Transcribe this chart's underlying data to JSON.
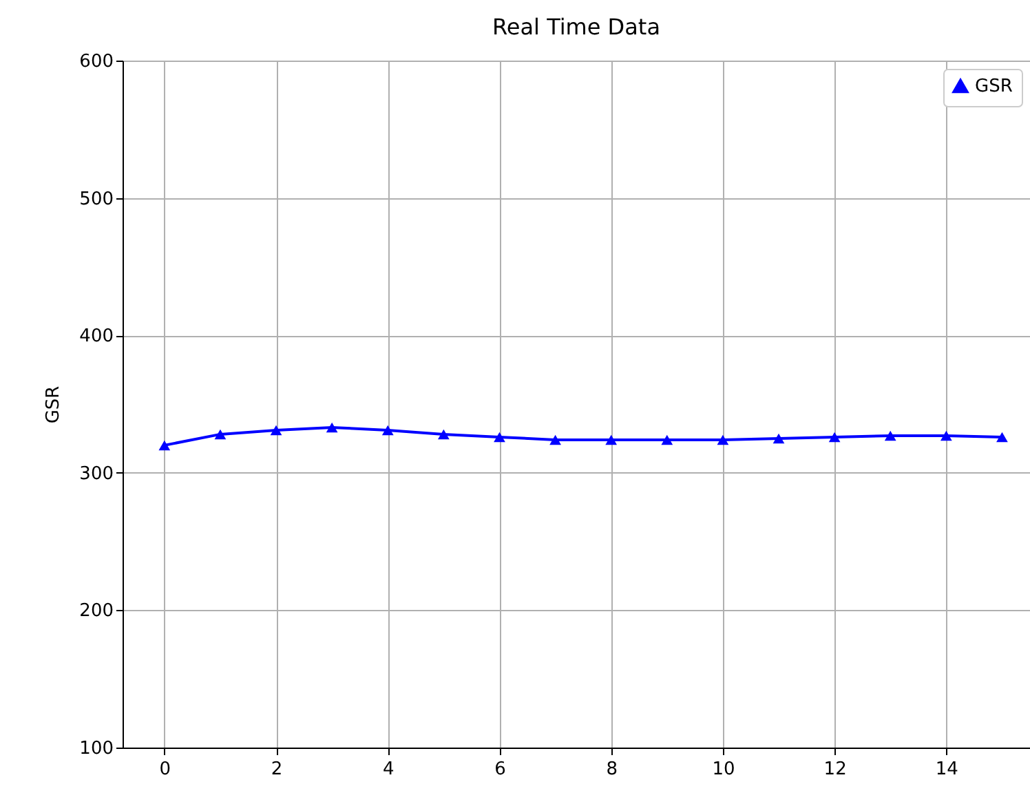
{
  "chart_data": {
    "type": "line",
    "title": "Real Time Data",
    "ylabel": "GSR",
    "x": [
      0,
      1,
      2,
      3,
      4,
      5,
      6,
      7,
      8,
      9,
      10,
      11,
      12,
      13,
      14,
      15
    ],
    "series": [
      {
        "name": "GSR",
        "color": "#0000ff",
        "values": [
          320,
          328,
          331,
          333,
          331,
          328,
          326,
          324,
          324,
          324,
          324,
          325,
          326,
          327,
          327,
          326
        ]
      }
    ],
    "xlim": [
      -0.75,
      15.5
    ],
    "xticks": [
      0,
      2,
      4,
      6,
      8,
      10,
      12,
      14
    ],
    "ylim": [
      100,
      600
    ],
    "yticks": [
      100,
      200,
      300,
      400,
      500,
      600
    ],
    "grid": true,
    "legend": "top right",
    "marker": "triangle",
    "line_style": "solid"
  }
}
